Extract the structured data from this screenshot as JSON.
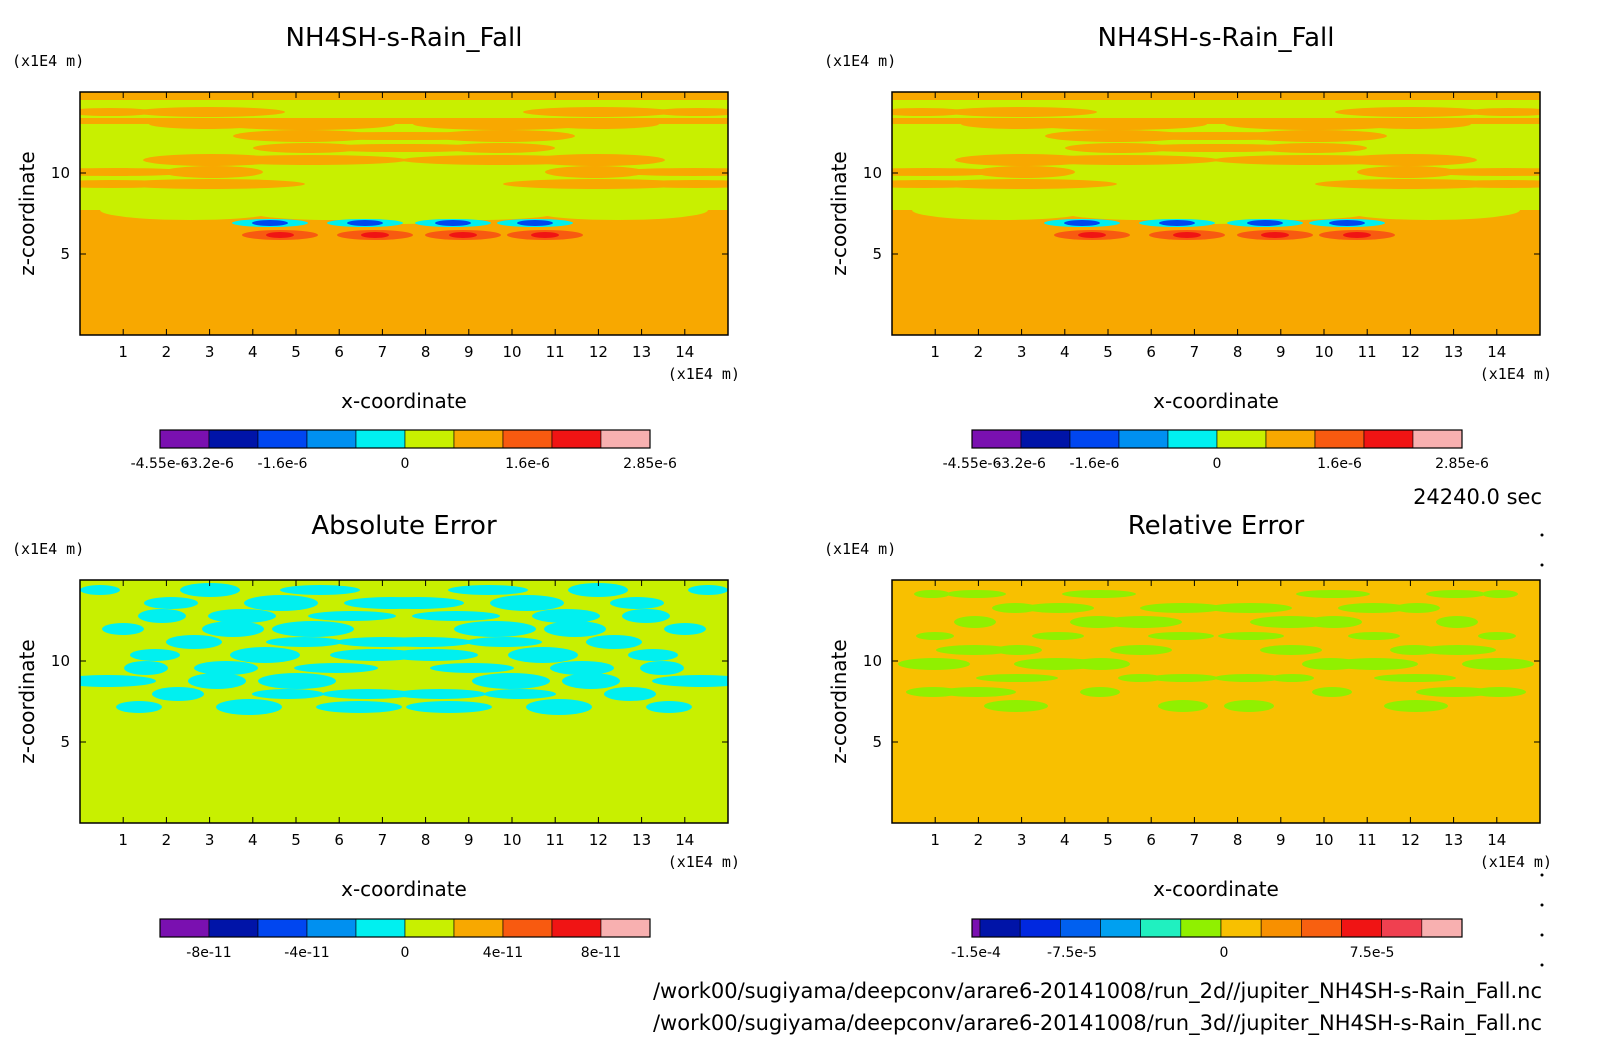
{
  "time_label": "24240.0 sec",
  "file_paths": [
    "/work00/sugiyama/deepconv/arare6-20141008/run_2d//jupiter_NH4SH-s-Rain_Fall.nc",
    "/work00/sugiyama/deepconv/arare6-20141008/run_3d//jupiter_NH4SH-s-Rain_Fall.nc"
  ],
  "colors": {
    "r1": [
      "#7a10b0",
      "#0014a8",
      "#0046f0",
      "#0090f0",
      "#00f0f0",
      "#c8f000",
      "#f8a800",
      "#f85a10",
      "#f01414",
      "#f8b0b0"
    ],
    "r2": [
      "#7a10b0",
      "#0014a8",
      "#0046f0",
      "#0090f0",
      "#00f0f0",
      "#c8f000",
      "#f8a800",
      "#f85a10",
      "#f01414",
      "#f8b0b0"
    ],
    "r3": [
      "#7a10b0",
      "#0014a8",
      "#0046f0",
      "#0090f0",
      "#00f0f0",
      "#c8f000",
      "#f8a800",
      "#f85a10",
      "#f01414",
      "#f8b0b0"
    ],
    "r4": [
      "#7a10b0",
      "#0014a8",
      "#0028e0",
      "#0060f0",
      "#00a0f0",
      "#20f0c0",
      "#90f000",
      "#f8c000",
      "#f89000",
      "#f86010",
      "#f01414",
      "#f04050",
      "#f8b0b0"
    ]
  },
  "chart_data": [
    {
      "type": "heatmap",
      "title": "NH4SH-s-Rain_Fall",
      "xlabel": "x-coordinate",
      "ylabel": "z-coordinate",
      "x_unit": "(x1E4 m)",
      "y_unit": "(x1E4 m)",
      "x_range": [
        0,
        15
      ],
      "y_range": [
        0,
        15
      ],
      "x_ticks": [
        "1",
        "2",
        "3",
        "4",
        "5",
        "6",
        "7",
        "8",
        "9",
        "10",
        "11",
        "12",
        "13",
        "14"
      ],
      "y_ticks": [
        "5",
        "10"
      ],
      "background_color": "#f8a800",
      "colorbar_ticks": [
        "-4.55e-6",
        "-3.2e-6",
        "-1.6e-6",
        "0",
        "1.6e-6",
        "2.85e-6"
      ],
      "colorbar_tick_positions": [
        0,
        1,
        2.5,
        5,
        7.5,
        10
      ]
    },
    {
      "type": "heatmap",
      "title": "NH4SH-s-Rain_Fall",
      "xlabel": "x-coordinate",
      "ylabel": "z-coordinate",
      "x_unit": "(x1E4 m)",
      "y_unit": "(x1E4 m)",
      "x_range": [
        0,
        15
      ],
      "y_range": [
        0,
        15
      ],
      "x_ticks": [
        "1",
        "2",
        "3",
        "4",
        "5",
        "6",
        "7",
        "8",
        "9",
        "10",
        "11",
        "12",
        "13",
        "14"
      ],
      "y_ticks": [
        "5",
        "10"
      ],
      "background_color": "#f8a800",
      "colorbar_ticks": [
        "-4.55e-6",
        "-3.2e-6",
        "-1.6e-6",
        "0",
        "1.6e-6",
        "2.85e-6"
      ],
      "colorbar_tick_positions": [
        0,
        1,
        2.5,
        5,
        7.5,
        10
      ]
    },
    {
      "type": "heatmap",
      "title": "Absolute Error",
      "xlabel": "x-coordinate",
      "ylabel": "z-coordinate",
      "x_unit": "(x1E4 m)",
      "y_unit": "(x1E4 m)",
      "x_range": [
        0,
        15
      ],
      "y_range": [
        0,
        15
      ],
      "x_ticks": [
        "1",
        "2",
        "3",
        "4",
        "5",
        "6",
        "7",
        "8",
        "9",
        "10",
        "11",
        "12",
        "13",
        "14"
      ],
      "y_ticks": [
        "5",
        "10"
      ],
      "background_color": "#c8f000",
      "colorbar_ticks": [
        "-8e-11",
        "-4e-11",
        "0",
        "4e-11",
        "8e-11"
      ],
      "colorbar_tick_positions": [
        1,
        3,
        5,
        7,
        9
      ]
    },
    {
      "type": "heatmap",
      "title": "Relative Error",
      "xlabel": "x-coordinate",
      "ylabel": "z-coordinate",
      "x_unit": "(x1E4 m)",
      "y_unit": "(x1E4 m)",
      "x_range": [
        0,
        15
      ],
      "y_range": [
        0,
        15
      ],
      "x_ticks": [
        "1",
        "2",
        "3",
        "4",
        "5",
        "6",
        "7",
        "8",
        "9",
        "10",
        "11",
        "12",
        "13",
        "14"
      ],
      "y_ticks": [
        "5",
        "10"
      ],
      "background_color": "#f8c000",
      "colorbar_ticks": [
        "-1.5e-4",
        "-7.5e-5",
        "0",
        "7.5e-5"
      ],
      "colorbar_tick_positions": [
        0.2,
        4.0,
        6.5,
        10.5
      ]
    }
  ]
}
